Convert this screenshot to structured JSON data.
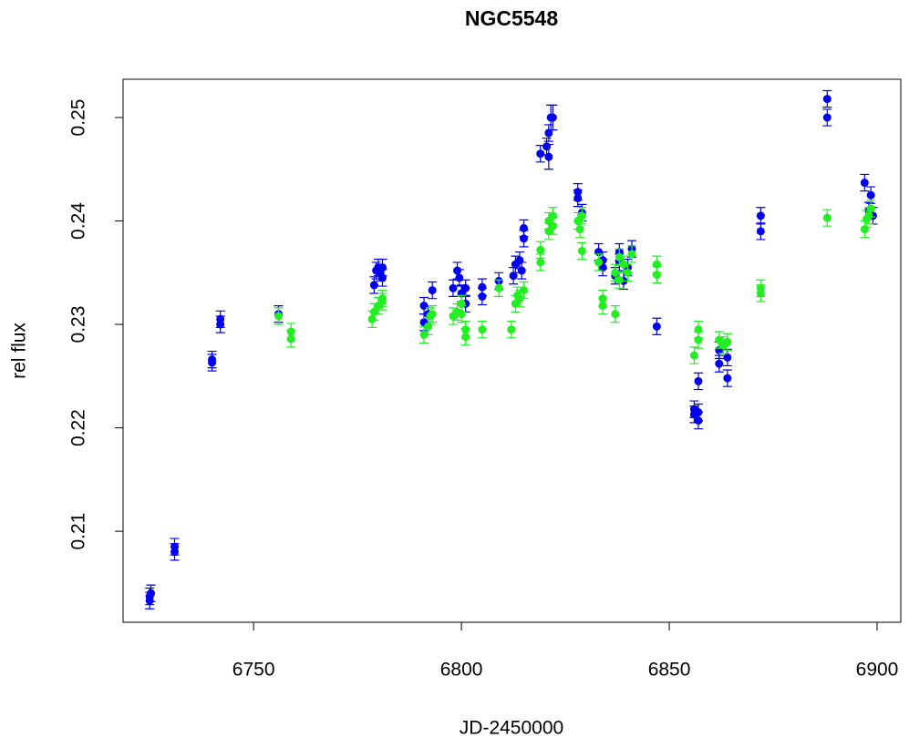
{
  "chart_data": {
    "type": "scatter",
    "title": "NGC5548",
    "x_label": "JD-2450000",
    "y_label": "rel flux",
    "xlim": [
      6718.6,
      6905.7
    ],
    "ylim": [
      0.2012,
      0.2537
    ],
    "xticks": [
      6750,
      6800,
      6850,
      6900
    ],
    "yticks": [
      0.21,
      0.22,
      0.23,
      0.24,
      0.25
    ],
    "series": [
      {
        "color": "#0000ee",
        "x": [
          6725,
          6725,
          6725.3,
          6731,
          6731,
          6740,
          6740,
          6742,
          6742,
          6756,
          6779,
          6779.5,
          6780,
          6780.5,
          6781,
          6781,
          6791,
          6791,
          6792,
          6793,
          6798,
          6799,
          6799.5,
          6800,
          6801,
          6801,
          6805,
          6805,
          6809,
          6812.5,
          6813,
          6814,
          6814.5,
          6815,
          6815,
          6819,
          6820.5,
          6821,
          6821,
          6821.5,
          6822,
          6828,
          6828,
          6829,
          6833,
          6834,
          6834,
          6837,
          6838,
          6838,
          6839,
          6840,
          6841,
          6847,
          6856,
          6856,
          6857,
          6857,
          6857,
          6862,
          6862,
          6864,
          6864,
          6872,
          6872,
          6888,
          6888,
          6897,
          6898,
          6898.5,
          6899
        ],
        "values": [
          0.2033,
          0.2037,
          0.204,
          0.208,
          0.2085,
          0.2263,
          0.2266,
          0.23,
          0.2305,
          0.231,
          0.2338,
          0.2352,
          0.2355,
          0.235,
          0.2345,
          0.2355,
          0.2302,
          0.2318,
          0.231,
          0.2333,
          0.2335,
          0.2352,
          0.2345,
          0.233,
          0.2335,
          0.232,
          0.2327,
          0.2336,
          0.2342,
          0.2347,
          0.2358,
          0.2362,
          0.2352,
          0.2383,
          0.2393,
          0.2465,
          0.2472,
          0.2485,
          0.2462,
          0.25,
          0.25,
          0.2428,
          0.2422,
          0.2408,
          0.237,
          0.2362,
          0.2355,
          0.2347,
          0.236,
          0.237,
          0.2342,
          0.2355,
          0.2373,
          0.2298,
          0.2218,
          0.2213,
          0.2207,
          0.2215,
          0.2245,
          0.2275,
          0.2262,
          0.2268,
          0.2248,
          0.2405,
          0.239,
          0.2518,
          0.25,
          0.2437,
          0.241,
          0.2425,
          0.2405
        ],
        "errors": [
          0.0008,
          0.0008,
          0.0008,
          0.0008,
          0.0008,
          0.0008,
          0.0008,
          0.0008,
          0.0008,
          0.0008,
          0.0008,
          0.0008,
          0.0008,
          0.0008,
          0.0008,
          0.0008,
          0.0008,
          0.0008,
          0.0008,
          0.0008,
          0.0008,
          0.0008,
          0.0008,
          0.0008,
          0.0008,
          0.0008,
          0.0008,
          0.0008,
          0.0008,
          0.0008,
          0.0008,
          0.0008,
          0.0008,
          0.0008,
          0.0008,
          0.0008,
          0.0008,
          0.0008,
          0.0012,
          0.0012,
          0.0012,
          0.0008,
          0.0008,
          0.0008,
          0.0008,
          0.0008,
          0.0008,
          0.0008,
          0.0008,
          0.0008,
          0.0008,
          0.0008,
          0.0008,
          0.0008,
          0.0008,
          0.0008,
          0.0008,
          0.0008,
          0.0008,
          0.0008,
          0.0008,
          0.0008,
          0.0008,
          0.0008,
          0.0008,
          0.0008,
          0.0008,
          0.0008,
          0.0008,
          0.0008,
          0.0008
        ]
      },
      {
        "color": "#22ee22",
        "x": [
          6756,
          6759,
          6759,
          6778.5,
          6779,
          6780,
          6781,
          6781,
          6791,
          6792,
          6792.5,
          6793,
          6798,
          6799,
          6800,
          6800,
          6801,
          6801,
          6805,
          6809,
          6812,
          6813,
          6813.5,
          6814,
          6815,
          6819,
          6819,
          6821,
          6821,
          6822,
          6822,
          6828,
          6828.5,
          6829,
          6829,
          6833,
          6834,
          6834,
          6837,
          6837,
          6838,
          6838,
          6839,
          6840,
          6841,
          6847,
          6847,
          6856,
          6857,
          6857,
          6862,
          6863,
          6864,
          6872,
          6872,
          6888,
          6897,
          6897.5,
          6898,
          6898.5
        ],
        "values": [
          0.2308,
          0.2293,
          0.2286,
          0.2305,
          0.2312,
          0.2318,
          0.2325,
          0.2322,
          0.229,
          0.2298,
          0.2308,
          0.231,
          0.2308,
          0.2312,
          0.232,
          0.231,
          0.2295,
          0.2288,
          0.2295,
          0.2335,
          0.2295,
          0.232,
          0.2328,
          0.2325,
          0.2333,
          0.236,
          0.2372,
          0.239,
          0.24,
          0.2405,
          0.2395,
          0.24,
          0.2392,
          0.2405,
          0.2371,
          0.236,
          0.2325,
          0.2318,
          0.231,
          0.235,
          0.2365,
          0.2343,
          0.2358,
          0.235,
          0.2368,
          0.2348,
          0.2358,
          0.227,
          0.2295,
          0.2285,
          0.2285,
          0.228,
          0.2283,
          0.233,
          0.2335,
          0.2403,
          0.2392,
          0.2402,
          0.2405,
          0.2412
        ],
        "errors": [
          0.0008,
          0.0008,
          0.0008,
          0.0008,
          0.0008,
          0.0008,
          0.0008,
          0.0008,
          0.0008,
          0.0008,
          0.0008,
          0.0008,
          0.0008,
          0.0008,
          0.0008,
          0.0008,
          0.0008,
          0.0008,
          0.0008,
          0.0008,
          0.0008,
          0.0008,
          0.0008,
          0.0008,
          0.0008,
          0.0008,
          0.0008,
          0.0008,
          0.0008,
          0.0008,
          0.0008,
          0.0008,
          0.0008,
          0.0008,
          0.0008,
          0.0008,
          0.0008,
          0.0008,
          0.0008,
          0.0008,
          0.0008,
          0.0008,
          0.0008,
          0.0008,
          0.0008,
          0.0008,
          0.0008,
          0.0008,
          0.0008,
          0.0008,
          0.0008,
          0.0008,
          0.0008,
          0.0008,
          0.0008,
          0.0008,
          0.0008,
          0.0008,
          0.0008,
          0.0008
        ]
      }
    ]
  }
}
